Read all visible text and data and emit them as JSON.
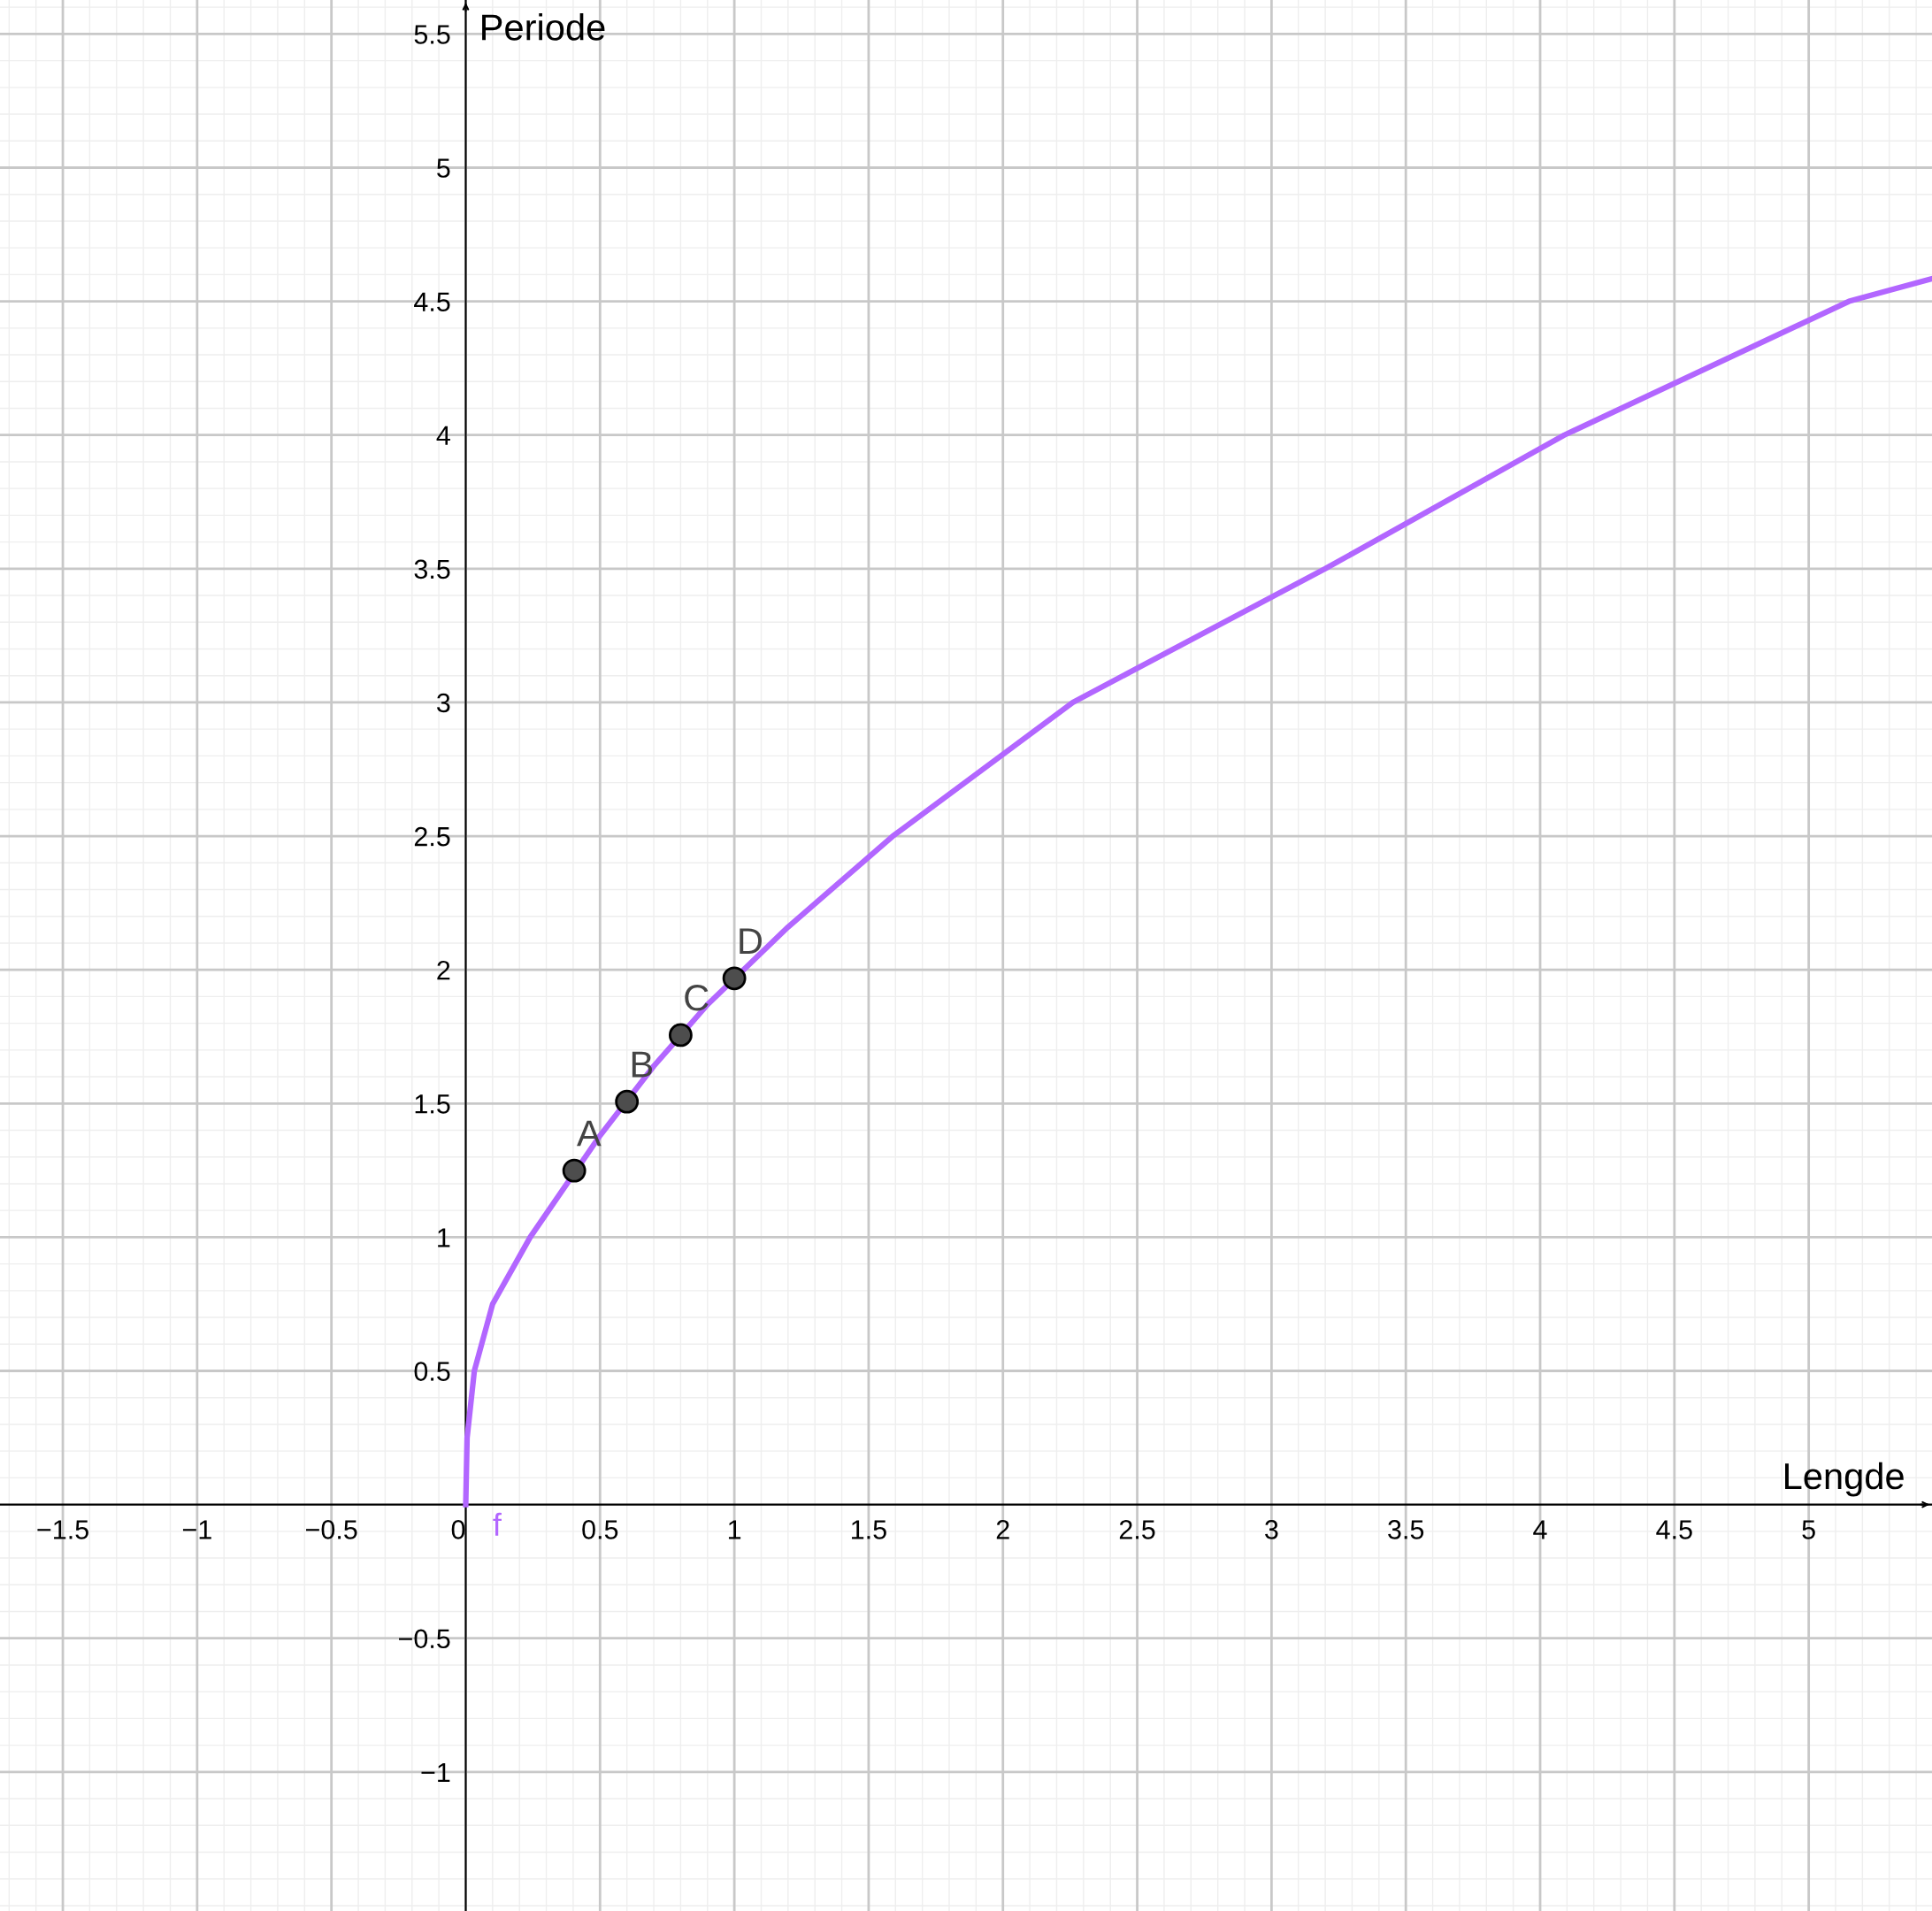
{
  "chart_data": {
    "type": "line",
    "xlabel": "Lengde",
    "ylabel": "Periode",
    "xlim": [
      -1.734,
      5.459
    ],
    "ylim": [
      -1.52,
      5.627
    ],
    "xticks": [
      {
        "value": -1.5,
        "label": "−1.5"
      },
      {
        "value": -1,
        "label": "−1"
      },
      {
        "value": -0.5,
        "label": "−0.5"
      },
      0,
      0.5,
      1,
      1.5,
      2,
      2.5,
      3,
      3.5,
      4,
      4.5,
      5
    ],
    "yticks": [
      {
        "value": -1,
        "label": "−1"
      },
      {
        "value": -0.5,
        "label": "−0.5"
      },
      0.5,
      1,
      1.5,
      2,
      2.5,
      3,
      3.5,
      4,
      4.5,
      5,
      5.5
    ],
    "grid": true,
    "series": [
      {
        "name": "f",
        "color": "#b266ff",
        "x": [
          0,
          0.005,
          0.032,
          0.1,
          0.24,
          0.5,
          0.7,
          0.9,
          1.2,
          1.59,
          2.26,
          3.2,
          4.09,
          5.15,
          5.459
        ],
        "values": [
          0,
          0.25,
          0.5,
          0.75,
          1,
          1.38,
          1.64,
          1.87,
          2.16,
          2.5,
          3,
          3.5,
          4,
          4.5,
          4.585
        ]
      },
      {
        "type": "scatter",
        "color": "#4d4d4d",
        "marker": "circle",
        "x": [
          0.404,
          0.6,
          0.8,
          1.0
        ],
        "values": [
          1.249,
          1.507,
          1.756,
          1.968
        ]
      }
    ],
    "annotations": [
      {
        "text": "A",
        "x": 0.404,
        "y": 1.249
      },
      {
        "text": "B",
        "x": 0.6,
        "y": 1.507
      },
      {
        "text": "C",
        "x": 0.8,
        "y": 1.756
      },
      {
        "text": "D",
        "x": 1.0,
        "y": 1.968
      }
    ]
  }
}
